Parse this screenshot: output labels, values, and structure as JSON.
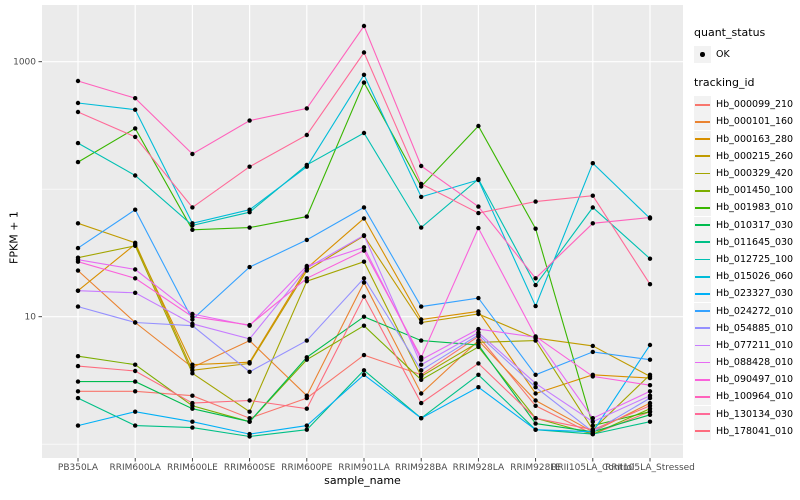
{
  "figure": {
    "background": "#FFFFFF",
    "panel_background": "#EBEBEB",
    "gridline_color": "#FFFFFF",
    "tick_label_color": "#4D4D4D",
    "axis_title_color": "#000000",
    "legend_key_background": "#F2F2F2",
    "point_color": "#000000"
  },
  "chart_data": {
    "type": "line",
    "title": "",
    "xlabel": "sample_name",
    "ylabel": "FPKM + 1",
    "y_scale": "log10",
    "y_ticks": [
      1000,
      10
    ],
    "y_tick_labels": [
      "1000",
      "10"
    ],
    "ylim": [
      0.75,
      2800
    ],
    "grid": "major white on gray panel, minor at 1 and 100",
    "legend_position": "right",
    "point_marker": "black circle",
    "categories": [
      "PB350LA",
      "RRIM600LA",
      "RRIM600LE",
      "RRIM600SE",
      "RRIM600PE",
      "RRIM901LA",
      "RRIM928BA",
      "RRIM928LA",
      "RRIM928LE",
      "RRII105LA_Control",
      "RRII105LA_Stressed"
    ],
    "legend": {
      "quant_status_title": "quant_status",
      "quant_status_items": [
        "OK"
      ],
      "tracking_id_title": "tracking_id"
    },
    "series": [
      {
        "name": "Hb_000099_210",
        "color": "#F8766D",
        "values": [
          2.6,
          2.6,
          2.4,
          1.6,
          2.3,
          5.0,
          3.5,
          7.0,
          2.0,
          1.2,
          1.8
        ]
      },
      {
        "name": "Hb_000101_160",
        "color": "#EA8331",
        "values": [
          23,
          9.0,
          4.0,
          6.5,
          2.4,
          18.5,
          2.5,
          6.5,
          2.2,
          1.25,
          2.1
        ]
      },
      {
        "name": "Hb_000163_280",
        "color": "#D89000",
        "values": [
          16,
          37,
          4.2,
          4.4,
          24,
          59,
          9.5,
          11,
          2.5,
          3.5,
          3.3
        ]
      },
      {
        "name": "Hb_000215_260",
        "color": "#C09B00",
        "values": [
          54,
          38,
          3.8,
          4.3,
          23,
          43,
          9.0,
          10.5,
          6.8,
          5.9,
          3.4
        ]
      },
      {
        "name": "Hb_000329_420",
        "color": "#A3A500",
        "values": [
          29,
          36,
          3.6,
          1.8,
          19,
          27,
          3.4,
          6.3,
          6.5,
          1.3,
          3.5
        ]
      },
      {
        "name": "Hb_001450_100",
        "color": "#7CAE00",
        "values": [
          4.9,
          4.2,
          2.0,
          1.5,
          4.6,
          8.5,
          3.2,
          5.8,
          1.6,
          1.2,
          1.9
        ]
      },
      {
        "name": "Hb_001983_010",
        "color": "#39B600",
        "values": [
          163,
          300,
          48,
          50,
          61,
          685,
          105,
          313,
          49,
          1.4,
          1.8
        ]
      },
      {
        "name": "Hb_010317_030",
        "color": "#00BB4E",
        "values": [
          3.1,
          3.1,
          1.9,
          1.5,
          4.8,
          10,
          6.5,
          6.0,
          1.45,
          1.25,
          1.7
        ]
      },
      {
        "name": "Hb_011645_030",
        "color": "#00C087",
        "values": [
          2.3,
          1.4,
          1.35,
          1.15,
          1.3,
          3.8,
          1.6,
          3.5,
          1.3,
          1.2,
          1.5
        ]
      },
      {
        "name": "Hb_012725_100",
        "color": "#00C0B2",
        "values": [
          230,
          128,
          52,
          66,
          155,
          276,
          50,
          120,
          17.7,
          71.8,
          28.5
        ]
      },
      {
        "name": "Hb_015026_060",
        "color": "#00BCD8",
        "values": [
          474,
          420,
          54,
          69,
          150,
          790,
          87,
          118,
          12.1,
          160,
          59
        ]
      },
      {
        "name": "Hb_023327_030",
        "color": "#00B0F6",
        "values": [
          1.4,
          1.8,
          1.5,
          1.2,
          1.4,
          3.5,
          1.6,
          2.8,
          1.3,
          1.25,
          6.0
        ]
      },
      {
        "name": "Hb_024272_010",
        "color": "#35A2FF",
        "values": [
          34.5,
          69,
          9.5,
          24.5,
          40,
          72,
          12,
          14,
          3.5,
          5.3,
          4.6
        ]
      },
      {
        "name": "Hb_054885_010",
        "color": "#9590FF",
        "values": [
          12,
          9.0,
          8.5,
          3.7,
          6.5,
          20,
          3.8,
          7.2,
          2.8,
          1.25,
          2.3
        ]
      },
      {
        "name": "Hb_077211_010",
        "color": "#C77CFF",
        "values": [
          16,
          15.4,
          8.8,
          6.7,
          24,
          43.5,
          4.2,
          7.5,
          3.0,
          1.5,
          2.4
        ]
      },
      {
        "name": "Hb_088428_010",
        "color": "#E76BF3",
        "values": [
          28,
          23.5,
          10.5,
          8.5,
          25,
          35,
          4.6,
          8.0,
          6.9,
          1.6,
          2.6
        ]
      },
      {
        "name": "Hb_090497_010",
        "color": "#FA62DB",
        "values": [
          27,
          20,
          10,
          8.6,
          20,
          33,
          4.8,
          49.5,
          7.0,
          3.4,
          2.9
        ]
      },
      {
        "name": "Hb_100964_010",
        "color": "#FF62BC",
        "values": [
          706,
          517,
          189,
          345,
          430,
          1906,
          152,
          73,
          20,
          54,
          60
        ]
      },
      {
        "name": "Hb_130134_030",
        "color": "#FF6A98",
        "values": [
          403,
          257,
          72,
          150,
          266,
          1180,
          110,
          65,
          80,
          89,
          18
        ]
      },
      {
        "name": "Hb_178041_010",
        "color": "#FD6C7E",
        "values": [
          4.1,
          3.75,
          2.1,
          2.2,
          1.9,
          14.4,
          2.1,
          4.3,
          1.6,
          1.3,
          2.0
        ]
      }
    ]
  }
}
